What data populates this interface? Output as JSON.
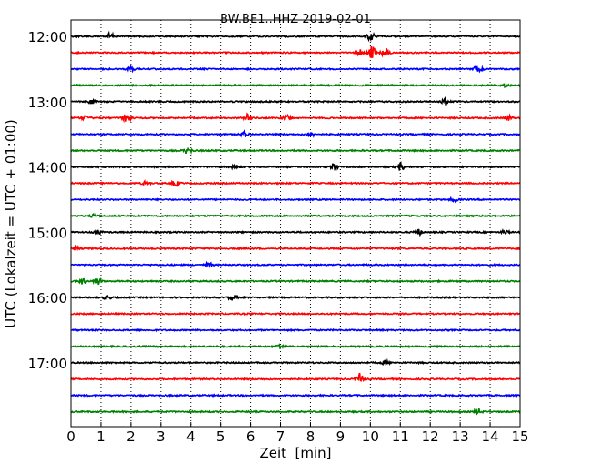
{
  "chart_data": {
    "type": "line",
    "title": "BW.BE1..HHZ 2019-02-01",
    "xlabel": "Zeit  [min]",
    "ylabel": "UTC (Lokalzeit = UTC + 01:00)",
    "xlim": [
      0,
      15
    ],
    "x_ticks": [
      "0",
      "1",
      "2",
      "3",
      "4",
      "5",
      "6",
      "7",
      "8",
      "9",
      "10",
      "11",
      "12",
      "13",
      "14",
      "15"
    ],
    "y_tick_labels": [
      "12:00",
      "13:00",
      "14:00",
      "15:00",
      "16:00",
      "17:00"
    ],
    "grid": true,
    "grid_style": "dotted vertical",
    "trace_interval_min": 15,
    "color_cycle": [
      "#000000",
      "#ff0000",
      "#0000ff",
      "#008000"
    ],
    "traces": [
      {
        "start": "12:00",
        "color": "#000000",
        "events": [
          {
            "t": 1.3,
            "amp": 4
          },
          {
            "t": 10.0,
            "amp": 5
          }
        ]
      },
      {
        "start": "12:15",
        "color": "#ff0000",
        "events": [
          {
            "t": 10.05,
            "amp": 8
          },
          {
            "t": 10.5,
            "amp": 5
          },
          {
            "t": 9.6,
            "amp": 4
          }
        ]
      },
      {
        "start": "12:30",
        "color": "#0000ff",
        "events": [
          {
            "t": 13.6,
            "amp": 5
          },
          {
            "t": 2.0,
            "amp": 2
          }
        ]
      },
      {
        "start": "12:45",
        "color": "#008000",
        "events": [
          {
            "t": 14.5,
            "amp": 2
          }
        ]
      },
      {
        "start": "13:00",
        "color": "#000000",
        "events": [
          {
            "t": 0.7,
            "amp": 2
          },
          {
            "t": 12.5,
            "amp": 3
          }
        ]
      },
      {
        "start": "13:15",
        "color": "#ff0000",
        "events": [
          {
            "t": 0.5,
            "amp": 3
          },
          {
            "t": 1.85,
            "amp": 4
          },
          {
            "t": 5.9,
            "amp": 4
          },
          {
            "t": 7.2,
            "amp": 3
          },
          {
            "t": 14.6,
            "amp": 3
          }
        ]
      },
      {
        "start": "13:30",
        "color": "#0000ff",
        "events": [
          {
            "t": 5.8,
            "amp": 3
          },
          {
            "t": 8.0,
            "amp": 3
          }
        ]
      },
      {
        "start": "13:45",
        "color": "#008000",
        "events": [
          {
            "t": 3.9,
            "amp": 3
          }
        ]
      },
      {
        "start": "14:00",
        "color": "#000000",
        "events": [
          {
            "t": 8.8,
            "amp": 4
          },
          {
            "t": 11.0,
            "amp": 4
          },
          {
            "t": 5.5,
            "amp": 2
          }
        ]
      },
      {
        "start": "14:15",
        "color": "#ff0000",
        "events": [
          {
            "t": 3.5,
            "amp": 3
          },
          {
            "t": 2.5,
            "amp": 2
          }
        ]
      },
      {
        "start": "14:30",
        "color": "#0000ff",
        "events": [
          {
            "t": 12.8,
            "amp": 2
          }
        ]
      },
      {
        "start": "14:45",
        "color": "#008000",
        "events": [
          {
            "t": 0.8,
            "amp": 2
          }
        ]
      },
      {
        "start": "15:00",
        "color": "#000000",
        "events": [
          {
            "t": 11.6,
            "amp": 3
          },
          {
            "t": 14.5,
            "amp": 2
          },
          {
            "t": 0.9,
            "amp": 2
          }
        ]
      },
      {
        "start": "15:15",
        "color": "#ff0000",
        "events": [
          {
            "t": 0.2,
            "amp": 2
          }
        ]
      },
      {
        "start": "15:30",
        "color": "#0000ff",
        "events": [
          {
            "t": 4.6,
            "amp": 2
          }
        ]
      },
      {
        "start": "15:45",
        "color": "#008000",
        "events": [
          {
            "t": 0.9,
            "amp": 4
          },
          {
            "t": 0.4,
            "amp": 3
          }
        ]
      },
      {
        "start": "16:00",
        "color": "#000000",
        "events": [
          {
            "t": 1.2,
            "amp": 2
          },
          {
            "t": 5.4,
            "amp": 3
          }
        ]
      },
      {
        "start": "16:15",
        "color": "#ff0000",
        "events": []
      },
      {
        "start": "16:30",
        "color": "#0000ff",
        "events": []
      },
      {
        "start": "16:45",
        "color": "#008000",
        "events": [
          {
            "t": 7.0,
            "amp": 3
          }
        ]
      },
      {
        "start": "17:00",
        "color": "#000000",
        "events": [
          {
            "t": 10.5,
            "amp": 2
          }
        ]
      },
      {
        "start": "17:15",
        "color": "#ff0000",
        "events": [
          {
            "t": 9.65,
            "amp": 6
          }
        ]
      },
      {
        "start": "17:30",
        "color": "#0000ff",
        "events": []
      },
      {
        "start": "17:45",
        "color": "#008000",
        "events": [
          {
            "t": 13.6,
            "amp": 3
          }
        ]
      }
    ]
  }
}
